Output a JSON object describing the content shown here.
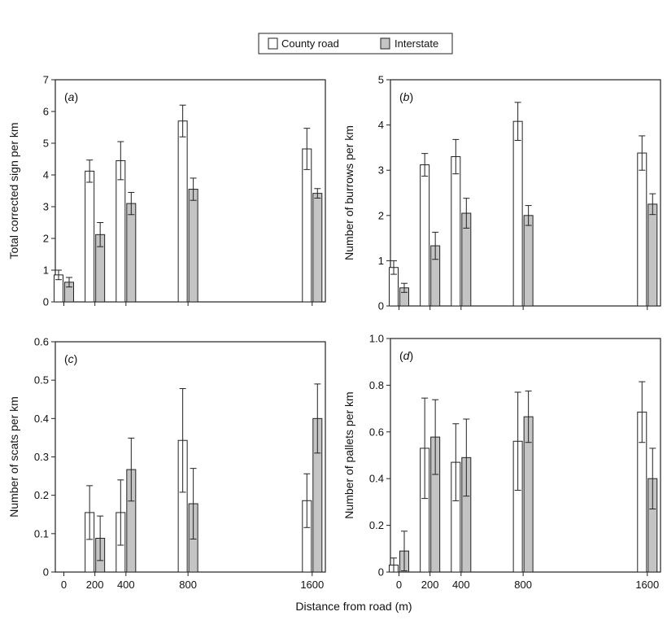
{
  "legend": {
    "items": [
      {
        "label": "County road",
        "color": "#ffffff"
      },
      {
        "label": "Interstate",
        "color": "#c4c4c4"
      }
    ]
  },
  "shared_xlabel": "Distance from road (m)",
  "chart_data": [
    {
      "type": "bar",
      "panel": "(a)",
      "panel_letter": "a",
      "ylabel": "Total corrected sign per km",
      "ylim": [
        0,
        7
      ],
      "yticks": [
        "0",
        "1",
        "2",
        "3",
        "4",
        "5",
        "6",
        "7"
      ],
      "x": [
        0,
        200,
        400,
        800,
        1600
      ],
      "xtick_labels": [],
      "series": [
        {
          "name": "County road",
          "values": [
            0.85,
            4.12,
            4.45,
            5.7,
            4.82
          ],
          "errors": [
            0.15,
            0.35,
            0.6,
            0.5,
            0.65
          ]
        },
        {
          "name": "Interstate",
          "values": [
            0.62,
            2.12,
            3.1,
            3.55,
            3.42
          ],
          "errors": [
            0.15,
            0.38,
            0.35,
            0.35,
            0.15
          ]
        }
      ]
    },
    {
      "type": "bar",
      "panel": "(b)",
      "panel_letter": "b",
      "ylabel": "Number of burrows per km",
      "ylim": [
        0,
        5
      ],
      "yticks": [
        "0",
        "1",
        "2",
        "3",
        "4",
        "5"
      ],
      "x": [
        0,
        200,
        400,
        800,
        1600
      ],
      "xtick_labels": [],
      "series": [
        {
          "name": "County road",
          "values": [
            0.85,
            3.12,
            3.3,
            4.08,
            3.38
          ],
          "errors": [
            0.15,
            0.25,
            0.38,
            0.42,
            0.38
          ]
        },
        {
          "name": "Interstate",
          "values": [
            0.4,
            1.33,
            2.05,
            2.0,
            2.25
          ],
          "errors": [
            0.1,
            0.3,
            0.33,
            0.22,
            0.23
          ]
        }
      ]
    },
    {
      "type": "bar",
      "panel": "(c)",
      "panel_letter": "c",
      "ylabel": "Number of scats per km",
      "ylim": [
        0,
        0.6
      ],
      "yticks": [
        "0",
        "0.1",
        "0.2",
        "0.3",
        "0.4",
        "0.5",
        "0.6"
      ],
      "x": [
        0,
        200,
        400,
        800,
        1600
      ],
      "xtick_labels": [
        "0",
        "200",
        "400",
        "800",
        "1600"
      ],
      "series": [
        {
          "name": "County road",
          "values": [
            0,
            0.155,
            0.155,
            0.343,
            0.186
          ],
          "errors": [
            0,
            0.07,
            0.085,
            0.135,
            0.07
          ]
        },
        {
          "name": "Interstate",
          "values": [
            0,
            0.088,
            0.267,
            0.178,
            0.4
          ],
          "errors": [
            0,
            0.058,
            0.082,
            0.092,
            0.09
          ]
        }
      ]
    },
    {
      "type": "bar",
      "panel": "(d)",
      "panel_letter": "d",
      "ylabel": "Number of pallets per km",
      "ylim": [
        0,
        1.0
      ],
      "yticks": [
        "0",
        "0.2",
        "0.4",
        "0.6",
        "0.8",
        "1.0"
      ],
      "x": [
        0,
        200,
        400,
        800,
        1600
      ],
      "xtick_labels": [
        "0",
        "200",
        "400",
        "800",
        "1600"
      ],
      "series": [
        {
          "name": "County road",
          "values": [
            0.03,
            0.53,
            0.47,
            0.56,
            0.685
          ],
          "errors": [
            0.03,
            0.215,
            0.165,
            0.21,
            0.13
          ]
        },
        {
          "name": "Interstate",
          "values": [
            0.09,
            0.578,
            0.49,
            0.665,
            0.4
          ],
          "errors": [
            0.085,
            0.16,
            0.165,
            0.11,
            0.13
          ]
        }
      ]
    }
  ]
}
